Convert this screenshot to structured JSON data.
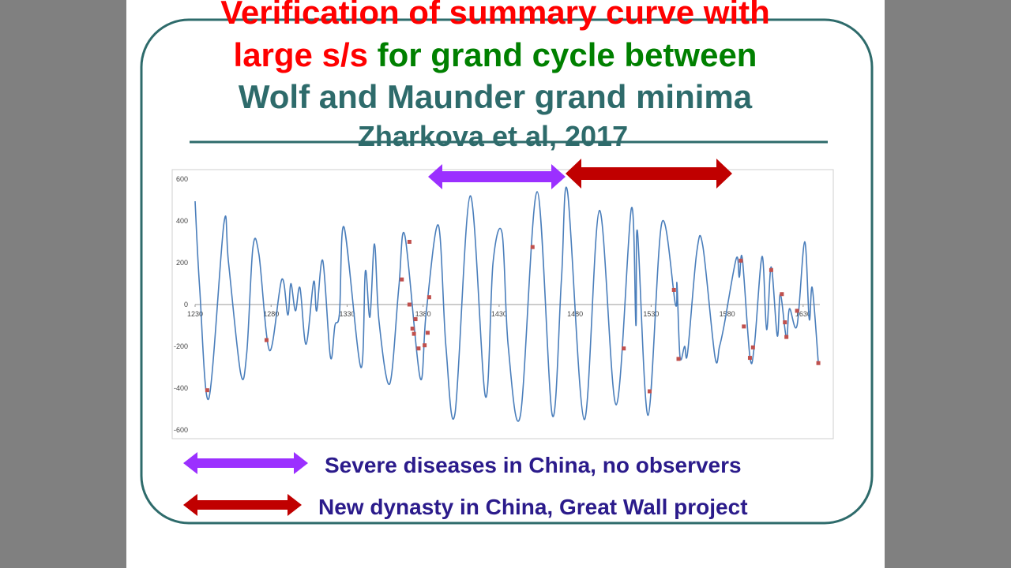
{
  "slide": {
    "title_line1": "Verification of summary curve with",
    "title_line2_red": "large s/s",
    "title_line2_green": "for grand cycle between",
    "title_line3": "Wolf and Maunder grand minima",
    "subtitle": "Zharkova et al, 2017",
    "legend_purple": "Severe diseases in China, no observers",
    "legend_red": "New dynasty in China, Great Wall project"
  },
  "chart_data": {
    "type": "line",
    "xlim": [
      1230,
      1641
    ],
    "ylim": [
      -600,
      600
    ],
    "xticks": [
      1230,
      1280,
      1330,
      1380,
      1430,
      1480,
      1530,
      1580,
      1630
    ],
    "yticks": [
      -600,
      -400,
      -200,
      0,
      200,
      400,
      600
    ],
    "grid": false,
    "series": [
      {
        "style": "line",
        "color": "#4a7ebb",
        "x": [
          1230,
          1233,
          1239,
          1249,
          1252,
          1260,
          1264,
          1268,
          1272,
          1279,
          1287,
          1291,
          1293,
          1296,
          1299,
          1303,
          1308,
          1310,
          1314,
          1319,
          1322,
          1325,
          1328,
          1339,
          1342,
          1345,
          1348,
          1351,
          1358,
          1364,
          1368,
          1378,
          1382,
          1390,
          1395,
          1401,
          1411,
          1421,
          1426,
          1432,
          1436,
          1444,
          1455,
          1465,
          1471,
          1475,
          1486,
          1496,
          1507,
          1517,
          1520,
          1521,
          1528,
          1537,
          1546,
          1547,
          1549,
          1552,
          1554,
          1560,
          1564,
          1572,
          1575,
          1578,
          1586,
          1588,
          1590,
          1595,
          1598,
          1603,
          1606,
          1609,
          1613,
          1615,
          1619,
          1621,
          1626,
          1631,
          1634,
          1636,
          1640
        ],
        "values": [
          494,
          80,
          -450,
          390,
          200,
          -330,
          -230,
          270,
          240,
          -220,
          120,
          -50,
          100,
          -30,
          80,
          -190,
          110,
          -30,
          210,
          -250,
          -100,
          -40,
          370,
          -300,
          160,
          -60,
          290,
          -80,
          -380,
          80,
          330,
          -350,
          -40,
          380,
          -200,
          -520,
          520,
          -440,
          200,
          340,
          -200,
          -530,
          540,
          -530,
          120,
          540,
          -550,
          450,
          -480,
          460,
          -100,
          350,
          -530,
          390,
          0,
          100,
          -250,
          -200,
          -230,
          250,
          280,
          -250,
          -200,
          -100,
          220,
          130,
          220,
          -250,
          -190,
          230,
          -120,
          180,
          -150,
          50,
          -160,
          -20,
          -100,
          300,
          -70,
          80,
          -280
        ]
      },
      {
        "style": "markers",
        "color": "#c0504d",
        "x": [
          1238,
          1277,
          1366,
          1371,
          1371,
          1373,
          1374,
          1375,
          1377,
          1381,
          1383,
          1384,
          1452,
          1512,
          1529,
          1545,
          1548,
          1589,
          1591,
          1595,
          1597,
          1609,
          1616,
          1618,
          1619,
          1626,
          1640
        ],
        "values": [
          -410,
          -170,
          120,
          300,
          0,
          -115,
          -140,
          -70,
          -210,
          -195,
          -135,
          35,
          275,
          -210,
          -415,
          70,
          -260,
          210,
          -105,
          -255,
          -205,
          165,
          50,
          -85,
          -155,
          -30,
          -280
        ]
      }
    ]
  }
}
